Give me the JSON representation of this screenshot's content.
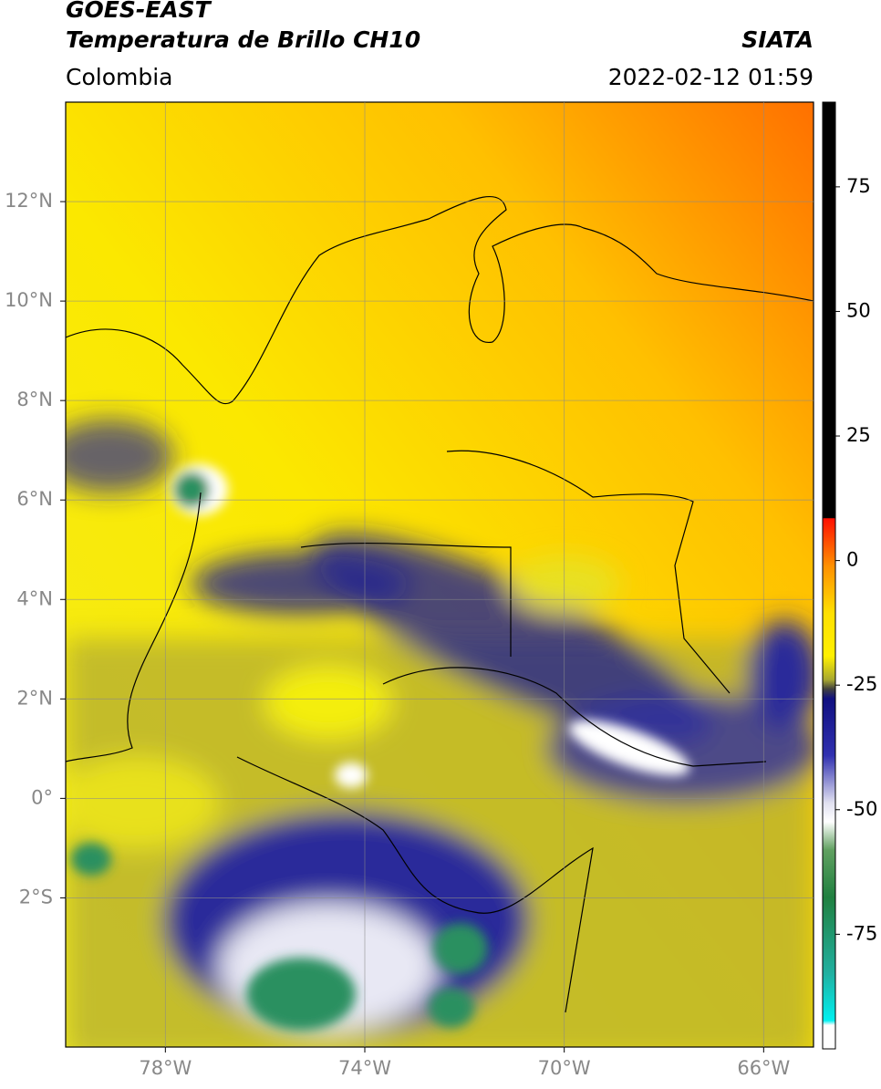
{
  "map": {
    "title": [
      "GOES-EAST",
      "Temperatura de Brillo CH10"
    ],
    "subtitle": "Colombia",
    "source": "SIATA",
    "datetime": "2022-02-12 01:59",
    "xlim": [
      -80,
      -65
    ],
    "ylim": [
      -5,
      14
    ],
    "xticks": [
      {
        "value": -78,
        "label": "78°W"
      },
      {
        "value": -74,
        "label": "74°W"
      },
      {
        "value": -70,
        "label": "70°W"
      },
      {
        "value": -66,
        "label": "66°W"
      }
    ],
    "yticks": [
      {
        "value": 12,
        "label": "12°N"
      },
      {
        "value": 10,
        "label": "10°N"
      },
      {
        "value": 8,
        "label": "8°N"
      },
      {
        "value": 6,
        "label": "6°N"
      },
      {
        "value": 4,
        "label": "4°N"
      },
      {
        "value": 2,
        "label": "2°N"
      },
      {
        "value": 0,
        "label": "0°"
      },
      {
        "value": -2,
        "label": "2°S"
      }
    ],
    "grid": true,
    "colorbar": {
      "lim": [
        -98,
        92
      ],
      "ticks": [
        75,
        50,
        25,
        0,
        -25,
        -50,
        -75
      ]
    }
  }
}
